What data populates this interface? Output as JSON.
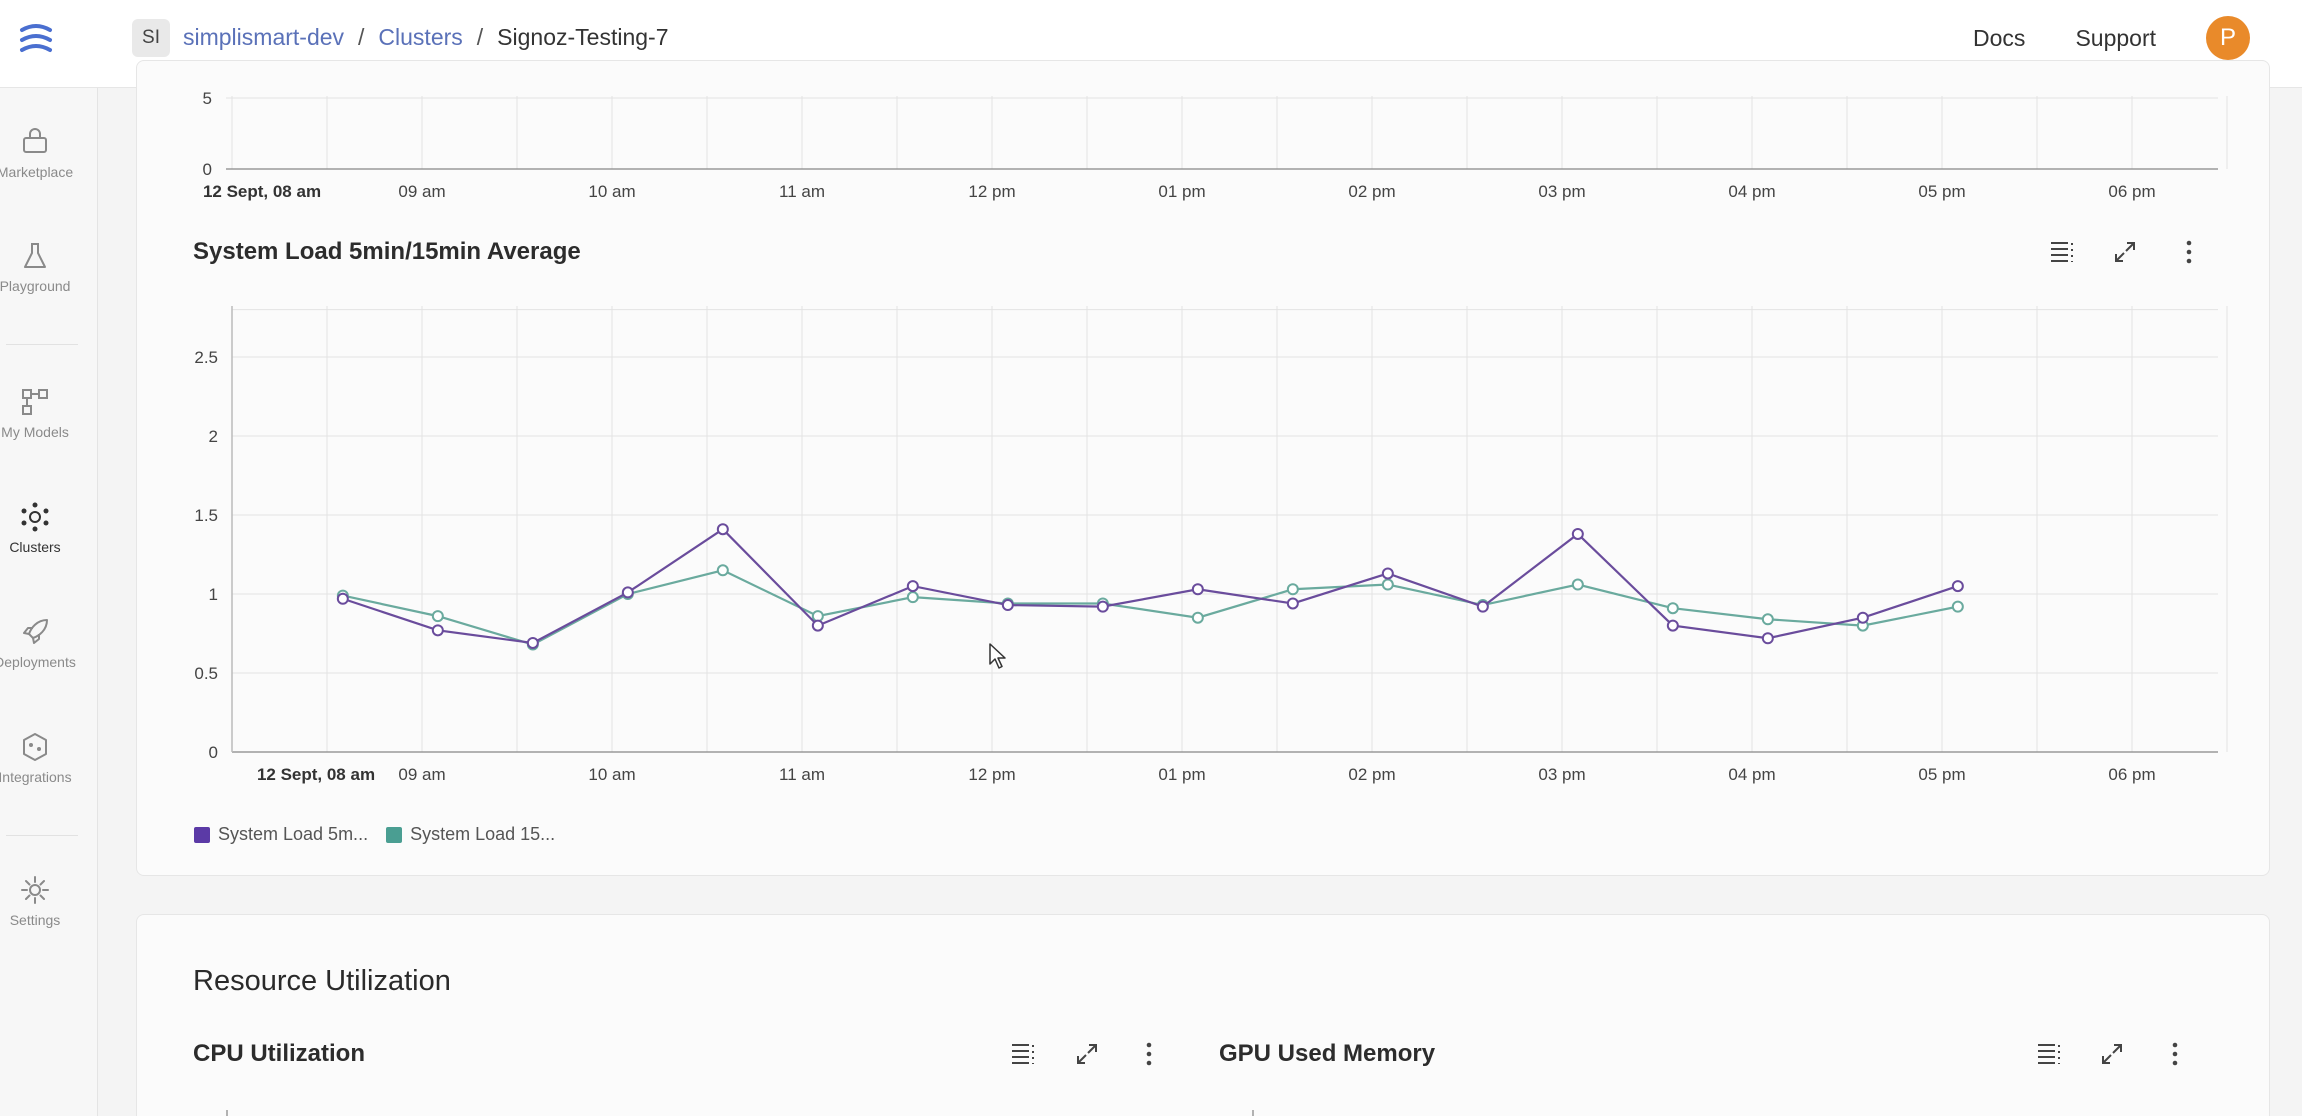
{
  "header": {
    "workspace_badge": "SI",
    "breadcrumb": [
      "simplismart-dev",
      "Clusters",
      "Signoz-Testing-7"
    ],
    "docs_label": "Docs",
    "support_label": "Support",
    "avatar_initial": "P"
  },
  "sidebar": {
    "items": [
      {
        "label": "Marketplace",
        "icon": "marketplace-icon"
      },
      {
        "label": "Playground",
        "icon": "flask-icon"
      },
      {
        "label": "My Models",
        "icon": "models-icon"
      },
      {
        "label": "Clusters",
        "icon": "clusters-icon",
        "active": true
      },
      {
        "label": "Deployments",
        "icon": "rocket-icon"
      },
      {
        "label": "Integrations",
        "icon": "integrations-icon"
      },
      {
        "label": "Settings",
        "icon": "gear-icon"
      }
    ]
  },
  "top_chart": {
    "y_ticks": [
      "5",
      "0"
    ],
    "x_ticks": [
      "12 Sept, 08 am",
      "09 am",
      "10 am",
      "11 am",
      "12 pm",
      "01 pm",
      "02 pm",
      "03 pm",
      "04 pm",
      "05 pm",
      "06 pm"
    ]
  },
  "system_load": {
    "title": "System Load 5min/15min Average",
    "legend": [
      "System Load 5m...",
      "System Load 15..."
    ]
  },
  "resource": {
    "title": "Resource Utilization",
    "cpu_title": "CPU Utilization",
    "gpu_title": "GPU Used Memory"
  },
  "colors": {
    "series_5m": "#6a4c9c",
    "series_15m": "#6aaa9e",
    "accent": "#5a71b8",
    "avatar": "#e98a2a"
  },
  "chart_data": {
    "type": "line",
    "title": "System Load 5min/15min Average",
    "x_ticks": [
      "12 Sept, 08 am",
      "09 am",
      "10 am",
      "11 am",
      "12 pm",
      "01 pm",
      "02 pm",
      "03 pm",
      "04 pm",
      "05 pm",
      "06 pm"
    ],
    "y_ticks": [
      "0",
      "0.5",
      "1",
      "1.5",
      "2",
      "2.5"
    ],
    "ylim": [
      0,
      2.8
    ],
    "x": [
      "08:35",
      "09:05",
      "09:35",
      "10:05",
      "10:35",
      "11:05",
      "11:35",
      "12:05",
      "12:35",
      "13:05",
      "13:35",
      "14:05",
      "14:35",
      "15:05",
      "15:35",
      "16:05",
      "16:35",
      "17:05"
    ],
    "series": [
      {
        "name": "System Load 5m...",
        "values": [
          0.97,
          0.77,
          0.69,
          1.01,
          1.41,
          0.8,
          1.05,
          0.93,
          0.92,
          1.03,
          0.94,
          1.13,
          0.92,
          1.38,
          0.8,
          0.72,
          0.85,
          1.05
        ]
      },
      {
        "name": "System Load 15...",
        "values": [
          0.99,
          0.86,
          0.68,
          1.0,
          1.15,
          0.86,
          0.98,
          0.94,
          0.94,
          0.85,
          1.03,
          1.06,
          0.93,
          1.06,
          0.91,
          0.84,
          0.8,
          0.92
        ]
      }
    ],
    "grid": true,
    "legend_position": "bottom-left"
  }
}
